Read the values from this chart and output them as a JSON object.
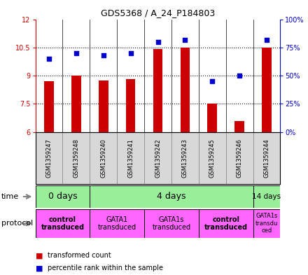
{
  "title": "GDS5368 / A_24_P184803",
  "samples": [
    "GSM1359247",
    "GSM1359248",
    "GSM1359240",
    "GSM1359241",
    "GSM1359242",
    "GSM1359243",
    "GSM1359245",
    "GSM1359246",
    "GSM1359244"
  ],
  "bar_values": [
    8.7,
    9.0,
    8.75,
    8.8,
    10.4,
    10.5,
    7.5,
    6.6,
    10.5
  ],
  "scatter_values": [
    65,
    70,
    68,
    70,
    80,
    82,
    45,
    50,
    82
  ],
  "ylim_left": [
    6,
    12
  ],
  "ylim_right": [
    0,
    100
  ],
  "yticks_left": [
    6,
    7.5,
    9,
    10.5,
    12
  ],
  "yticks_right": [
    0,
    25,
    50,
    75,
    100
  ],
  "ytick_labels_left": [
    "6",
    "7.5",
    "9",
    "10.5",
    "12"
  ],
  "ytick_labels_right": [
    "0%",
    "25%",
    "50%",
    "75%",
    "100%"
  ],
  "bar_color": "#cc0000",
  "scatter_color": "#0000cc",
  "bar_bottom": 6,
  "time_groups": [
    {
      "label": "0 days",
      "start": 0,
      "end": 2,
      "color": "#99ee99"
    },
    {
      "label": "4 days",
      "start": 2,
      "end": 8,
      "color": "#99ee99"
    },
    {
      "label": "14 days",
      "start": 8,
      "end": 9,
      "color": "#99ee99"
    }
  ],
  "protocol_groups": [
    {
      "label": "control\ntransduced",
      "start": 0,
      "end": 2,
      "color": "#ff66ff",
      "bold": true
    },
    {
      "label": "GATA1\ntransduced",
      "start": 2,
      "end": 4,
      "color": "#ff66ff",
      "bold": false
    },
    {
      "label": "GATA1s\ntransduced",
      "start": 4,
      "end": 6,
      "color": "#ff66ff",
      "bold": false
    },
    {
      "label": "control\ntransduced",
      "start": 6,
      "end": 8,
      "color": "#ff66ff",
      "bold": true
    },
    {
      "label": "GATA1s\ntransdu\nced",
      "start": 8,
      "end": 9,
      "color": "#ff66ff",
      "bold": false
    }
  ],
  "legend_bar_label": "transformed count",
  "legend_scatter_label": "percentile rank within the sample",
  "time_label": "time",
  "protocol_label": "protocol",
  "background_color": "#ffffff",
  "panel_bg": "#d8d8d8"
}
